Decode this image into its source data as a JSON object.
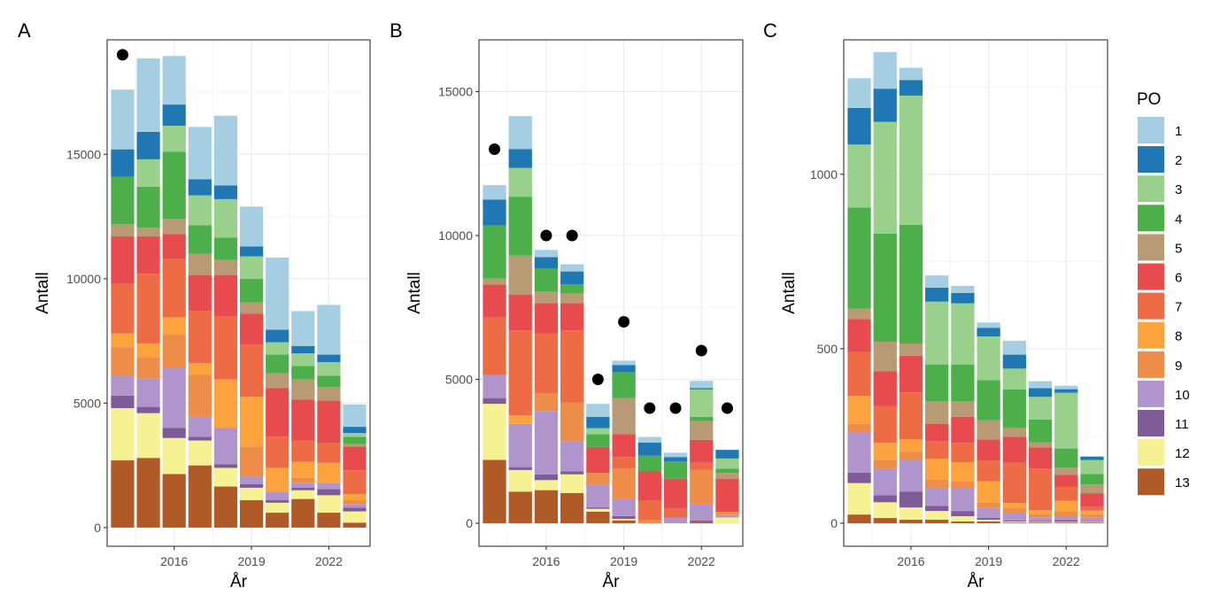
{
  "colors": {
    "1": "#A6CEE3",
    "2": "#1F78B4",
    "3": "#99D08C",
    "4": "#4DAF4A",
    "5": "#B89A74",
    "6": "#E84B4E",
    "7": "#EE6C45",
    "8": "#FDA33E",
    "9": "#EE8C4A",
    "10": "#B094CC",
    "11": "#7F5B97",
    "12": "#F6F293",
    "13": "#B05A28"
  },
  "chart_data": [
    {
      "panel": "A",
      "type": "bar",
      "stacked": true,
      "xlabel": "År",
      "ylabel": "Antall",
      "years": [
        2014,
        2015,
        2016,
        2017,
        2018,
        2019,
        2020,
        2021,
        2022,
        2023
      ],
      "x_ticks": [
        "2016",
        "2019",
        "2022"
      ],
      "ylim": [
        -750,
        19600
      ],
      "y_ticks": [
        "0",
        "5000",
        "10000",
        "15000"
      ],
      "stack_order_bottom_to_top": [
        "13",
        "12",
        "11",
        "10",
        "9",
        "8",
        "7",
        "6",
        "5",
        "4",
        "3",
        "2",
        "1"
      ],
      "series": [
        {
          "name": "13",
          "values": [
            2700,
            2800,
            2150,
            2500,
            1650,
            1100,
            600,
            1150,
            600,
            200
          ]
        },
        {
          "name": "12",
          "values": [
            2100,
            1800,
            1450,
            1000,
            750,
            500,
            400,
            350,
            700,
            450
          ]
        },
        {
          "name": "11",
          "values": [
            500,
            250,
            400,
            150,
            150,
            150,
            100,
            100,
            250,
            150
          ]
        },
        {
          "name": "10",
          "values": [
            800,
            1150,
            2400,
            800,
            1450,
            300,
            350,
            200,
            250,
            150
          ]
        },
        {
          "name": "9",
          "values": [
            1150,
            850,
            1350,
            1700,
            0,
            1200,
            0,
            200,
            0,
            150
          ]
        },
        {
          "name": "8",
          "values": [
            550,
            550,
            700,
            450,
            1950,
            2000,
            950,
            650,
            800,
            250
          ]
        },
        {
          "name": "7",
          "values": [
            2000,
            2800,
            2350,
            2100,
            2550,
            2100,
            1250,
            850,
            800,
            950
          ]
        },
        {
          "name": "6",
          "values": [
            1900,
            1500,
            1000,
            1450,
            1650,
            1250,
            1950,
            1650,
            1700,
            950
          ]
        },
        {
          "name": "5",
          "values": [
            500,
            350,
            600,
            850,
            600,
            450,
            600,
            800,
            550,
            100
          ]
        },
        {
          "name": "4",
          "values": [
            1900,
            1650,
            2700,
            1150,
            900,
            950,
            750,
            550,
            450,
            300
          ]
        },
        {
          "name": "3",
          "values": [
            0,
            1100,
            1050,
            1200,
            1550,
            900,
            500,
            500,
            550,
            150
          ]
        },
        {
          "name": "2",
          "values": [
            1100,
            1100,
            850,
            650,
            550,
            400,
            500,
            300,
            300,
            250
          ]
        },
        {
          "name": "1",
          "values": [
            2400,
            2950,
            1950,
            2100,
            2800,
            1600,
            2900,
            1400,
            2000,
            900
          ]
        }
      ],
      "points": [
        {
          "year": 2014,
          "value": 19000
        }
      ]
    },
    {
      "panel": "B",
      "type": "bar",
      "stacked": true,
      "xlabel": "År",
      "ylabel": "Antall",
      "years": [
        2014,
        2015,
        2016,
        2017,
        2018,
        2019,
        2020,
        2021,
        2022,
        2023
      ],
      "x_ticks": [
        "2016",
        "2019",
        "2022"
      ],
      "ylim": [
        -800,
        16800
      ],
      "y_ticks": [
        "0",
        "5000",
        "10000",
        "15000"
      ],
      "stack_order_bottom_to_top": [
        "13",
        "12",
        "11",
        "10",
        "9",
        "8",
        "7",
        "6",
        "5",
        "4",
        "3",
        "2",
        "1"
      ],
      "series": [
        {
          "name": "13",
          "values": [
            2200,
            1100,
            1150,
            1050,
            400,
            100,
            0,
            0,
            50,
            0
          ]
        },
        {
          "name": "12",
          "values": [
            1950,
            750,
            350,
            650,
            100,
            50,
            0,
            0,
            0,
            200
          ]
        },
        {
          "name": "11",
          "values": [
            200,
            100,
            200,
            100,
            50,
            100,
            0,
            0,
            50,
            0
          ]
        },
        {
          "name": "10",
          "values": [
            800,
            1500,
            2200,
            1050,
            800,
            600,
            0,
            200,
            550,
            100
          ]
        },
        {
          "name": "9",
          "values": [
            0,
            0,
            600,
            1350,
            400,
            1050,
            100,
            0,
            1200,
            100
          ]
        },
        {
          "name": "8",
          "values": [
            0,
            300,
            0,
            0,
            0,
            0,
            0,
            0,
            0,
            0
          ]
        },
        {
          "name": "7",
          "values": [
            2000,
            2950,
            2100,
            2500,
            0,
            400,
            700,
            300,
            250,
            0
          ]
        },
        {
          "name": "6",
          "values": [
            1150,
            1250,
            1050,
            950,
            900,
            800,
            1000,
            1050,
            800,
            1150
          ]
        },
        {
          "name": "5",
          "values": [
            200,
            1350,
            400,
            350,
            0,
            1250,
            0,
            0,
            650,
            200
          ]
        },
        {
          "name": "4",
          "values": [
            1850,
            2050,
            800,
            300,
            450,
            900,
            550,
            600,
            150,
            150
          ]
        },
        {
          "name": "3",
          "values": [
            0,
            1000,
            0,
            0,
            200,
            0,
            0,
            0,
            950,
            350
          ]
        },
        {
          "name": "2",
          "values": [
            900,
            650,
            400,
            450,
            400,
            250,
            450,
            150,
            50,
            300
          ]
        },
        {
          "name": "1",
          "values": [
            500,
            1150,
            250,
            250,
            450,
            150,
            200,
            150,
            250,
            0
          ]
        }
      ],
      "points": [
        {
          "year": 2014,
          "value": 13000
        },
        {
          "year": 2016,
          "value": 10000
        },
        {
          "year": 2017,
          "value": 10000
        },
        {
          "year": 2018,
          "value": 5000
        },
        {
          "year": 2019,
          "value": 7000
        },
        {
          "year": 2020,
          "value": 4000
        },
        {
          "year": 2021,
          "value": 4000
        },
        {
          "year": 2022,
          "value": 6000
        },
        {
          "year": 2023,
          "value": 4000
        }
      ]
    },
    {
      "panel": "C",
      "type": "bar",
      "stacked": true,
      "xlabel": "År",
      "ylabel": "Antall",
      "years": [
        2014,
        2015,
        2016,
        2017,
        2018,
        2019,
        2020,
        2021,
        2022,
        2023
      ],
      "x_ticks": [
        "2016",
        "2019",
        "2022"
      ],
      "ylim": [
        -66,
        1385
      ],
      "y_ticks": [
        "0",
        "500",
        "1000"
      ],
      "stack_order_bottom_to_top": [
        "13",
        "12",
        "11",
        "10",
        "9",
        "8",
        "7",
        "6",
        "5",
        "4",
        "3",
        "2",
        "1"
      ],
      "series": [
        {
          "name": "13",
          "values": [
            25,
            15,
            10,
            10,
            5,
            5,
            2,
            2,
            2,
            2
          ]
        },
        {
          "name": "12",
          "values": [
            90,
            45,
            35,
            25,
            15,
            5,
            3,
            2,
            2,
            2
          ]
        },
        {
          "name": "11",
          "values": [
            30,
            20,
            45,
            15,
            15,
            5,
            3,
            3,
            5,
            2
          ]
        },
        {
          "name": "10",
          "values": [
            115,
            75,
            90,
            50,
            65,
            30,
            20,
            10,
            10,
            10
          ]
        },
        {
          "name": "9",
          "values": [
            25,
            25,
            25,
            25,
            20,
            15,
            15,
            10,
            15,
            10
          ]
        },
        {
          "name": "8",
          "values": [
            80,
            50,
            35,
            60,
            55,
            60,
            15,
            10,
            30,
            10
          ]
        },
        {
          "name": "7",
          "values": [
            125,
            105,
            135,
            50,
            55,
            60,
            115,
            120,
            40,
            10
          ]
        },
        {
          "name": "6",
          "values": [
            95,
            100,
            105,
            50,
            75,
            60,
            75,
            60,
            35,
            40
          ]
        },
        {
          "name": "5",
          "values": [
            30,
            85,
            35,
            65,
            45,
            55,
            25,
            15,
            20,
            25
          ]
        },
        {
          "name": "4",
          "values": [
            290,
            310,
            340,
            105,
            105,
            115,
            110,
            65,
            55,
            30
          ]
        },
        {
          "name": "3",
          "values": [
            180,
            320,
            370,
            180,
            175,
            125,
            60,
            65,
            160,
            40
          ]
        },
        {
          "name": "2",
          "values": [
            105,
            95,
            45,
            40,
            30,
            25,
            40,
            25,
            10,
            10
          ]
        },
        {
          "name": "1",
          "values": [
            85,
            105,
            35,
            35,
            20,
            15,
            40,
            20,
            10,
            0
          ]
        }
      ],
      "points": []
    }
  ],
  "legend": {
    "title": "PO",
    "items": [
      "1",
      "2",
      "3",
      "4",
      "5",
      "6",
      "7",
      "8",
      "9",
      "10",
      "11",
      "12",
      "13"
    ]
  }
}
